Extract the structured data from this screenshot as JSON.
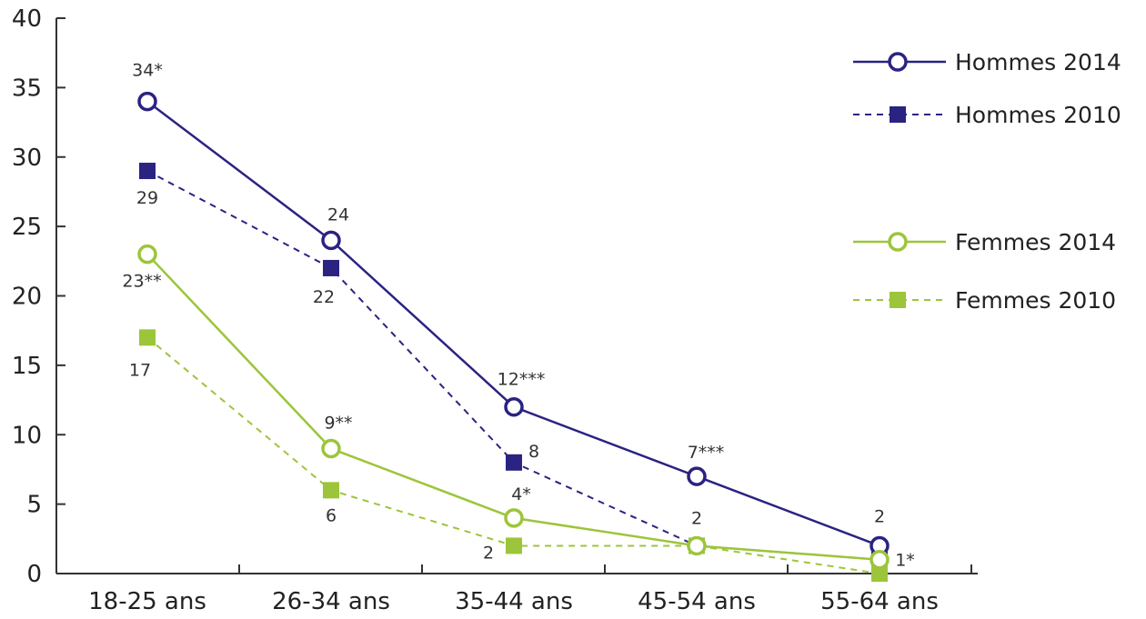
{
  "chart_data": {
    "type": "line",
    "categories": [
      "18-25 ans",
      "26-34 ans",
      "35-44 ans",
      "45-54 ans",
      "55-64 ans"
    ],
    "ylim": [
      0,
      40
    ],
    "yticks": [
      0,
      5,
      10,
      15,
      20,
      25,
      30,
      35,
      40
    ],
    "grid": false,
    "legend_position": "top-right",
    "series": [
      {
        "name": "Hommes 2014",
        "color": "#2a2382",
        "dash": false,
        "marker": "open-circle",
        "values": [
          34,
          24,
          12,
          7,
          2
        ],
        "labels": [
          "34*",
          "24",
          "12***",
          "7***",
          "2"
        ]
      },
      {
        "name": "Hommes 2010",
        "color": "#2a2382",
        "dash": true,
        "marker": "filled-square",
        "values": [
          29,
          22,
          8,
          2,
          1
        ],
        "labels": [
          "29",
          "22",
          "8",
          "",
          ""
        ]
      },
      {
        "name": "Femmes 2014",
        "color": "#9cc53b",
        "dash": false,
        "marker": "open-circle",
        "values": [
          23,
          9,
          4,
          2,
          1
        ],
        "labels": [
          "23**",
          "9**",
          "4*",
          "2",
          "1*"
        ]
      },
      {
        "name": "Femmes 2010",
        "color": "#9cc53b",
        "dash": true,
        "marker": "filled-square",
        "values": [
          17,
          6,
          2,
          2,
          0
        ],
        "labels": [
          "17",
          "6",
          "2",
          "",
          ""
        ]
      }
    ]
  }
}
